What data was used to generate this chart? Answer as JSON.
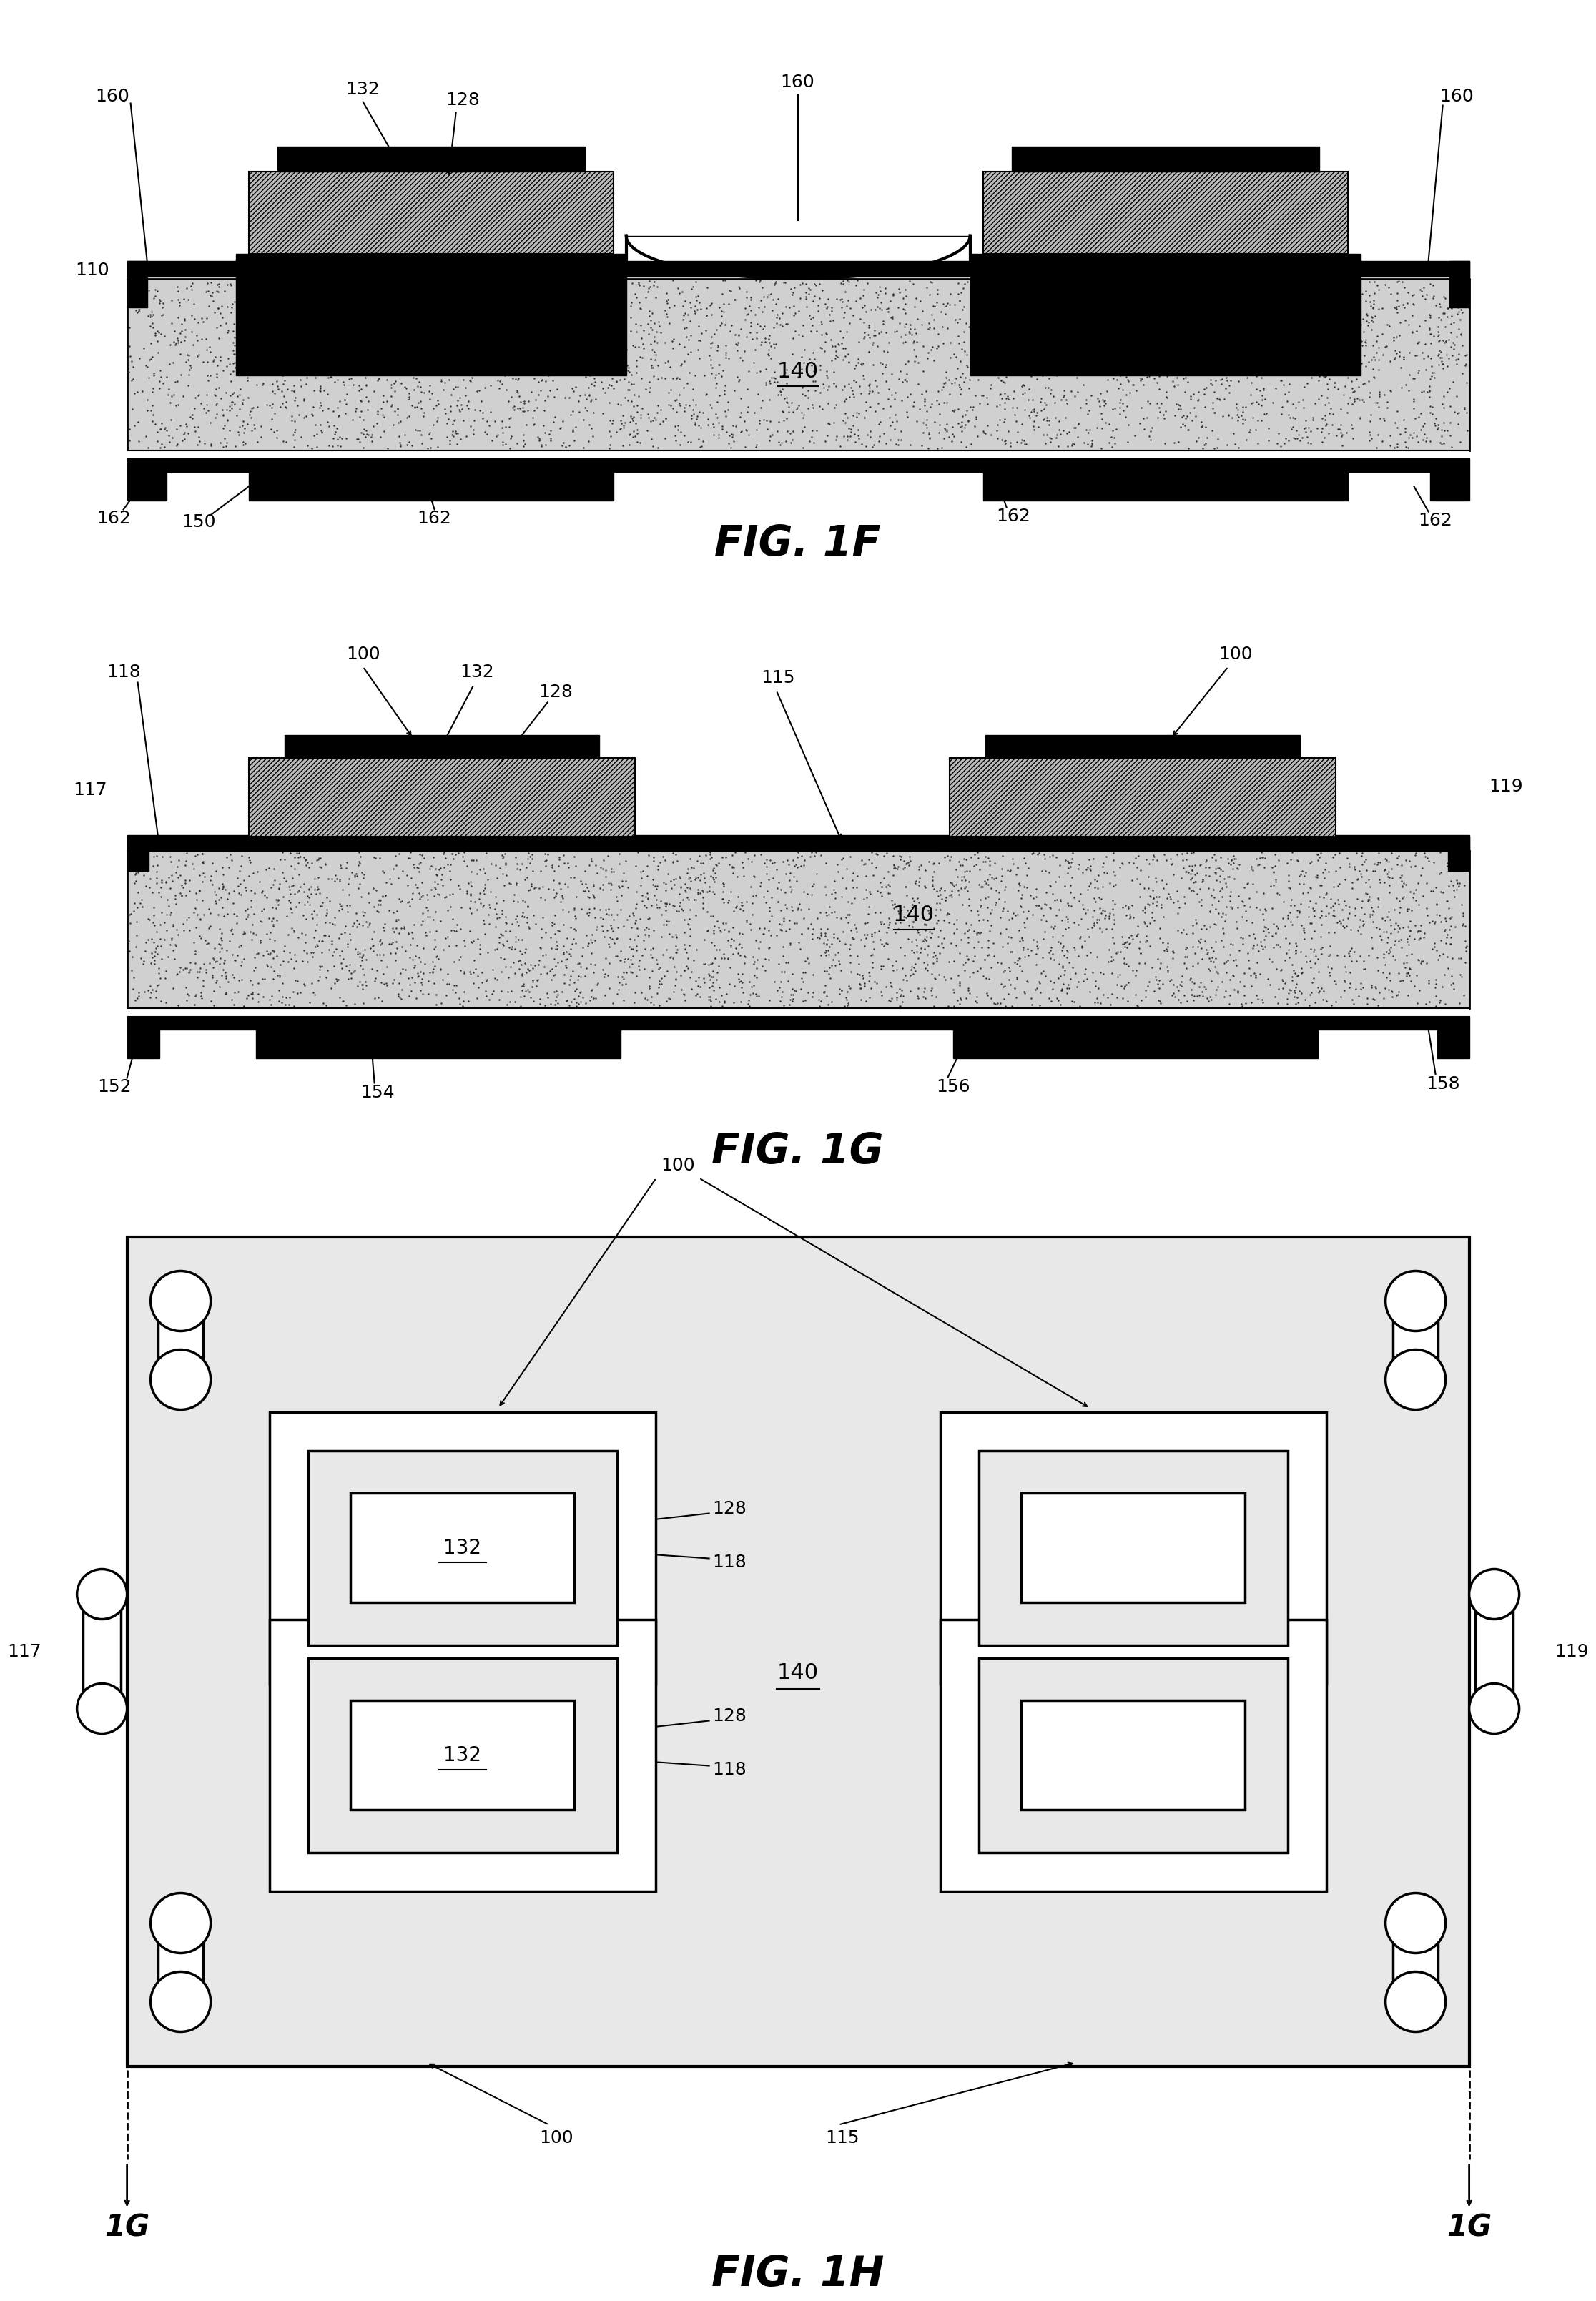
{
  "background": "#ffffff",
  "fig1f_label": "FIG. 1F",
  "fig1g_label": "FIG. 1G",
  "fig1h_label": "FIG. 1H",
  "stipple_bg": "#d0d0d0",
  "stipple_dot": "#333333",
  "hatch_bg": "#bbbbbb",
  "black": "#000000",
  "white": "#ffffff",
  "light_gray": "#e8e8e8"
}
